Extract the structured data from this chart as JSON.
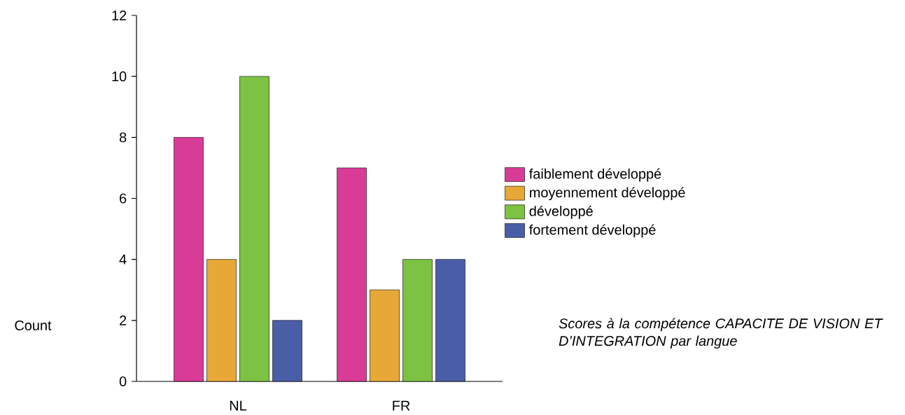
{
  "chart_data": {
    "type": "bar",
    "title": "Scores à la compétence CAPACITE DE VISION ET D’INTEGRATION  par langue",
    "ylabel": "Count",
    "categories": [
      "NL",
      "FR"
    ],
    "series": [
      {
        "name": "faiblement développé",
        "color": "#d93c96",
        "values": [
          8,
          7
        ]
      },
      {
        "name": "moyennement développé",
        "color": "#e8a838",
        "values": [
          4,
          3
        ]
      },
      {
        "name": "développé",
        "color": "#7dc242",
        "values": [
          10,
          4
        ]
      },
      {
        "name": "fortement développé",
        "color": "#4a5ea8",
        "values": [
          2,
          4
        ]
      }
    ],
    "ylim": [
      0,
      12
    ],
    "yticks": [
      0,
      2,
      4,
      6,
      8,
      10,
      12
    ],
    "legend": "right"
  }
}
